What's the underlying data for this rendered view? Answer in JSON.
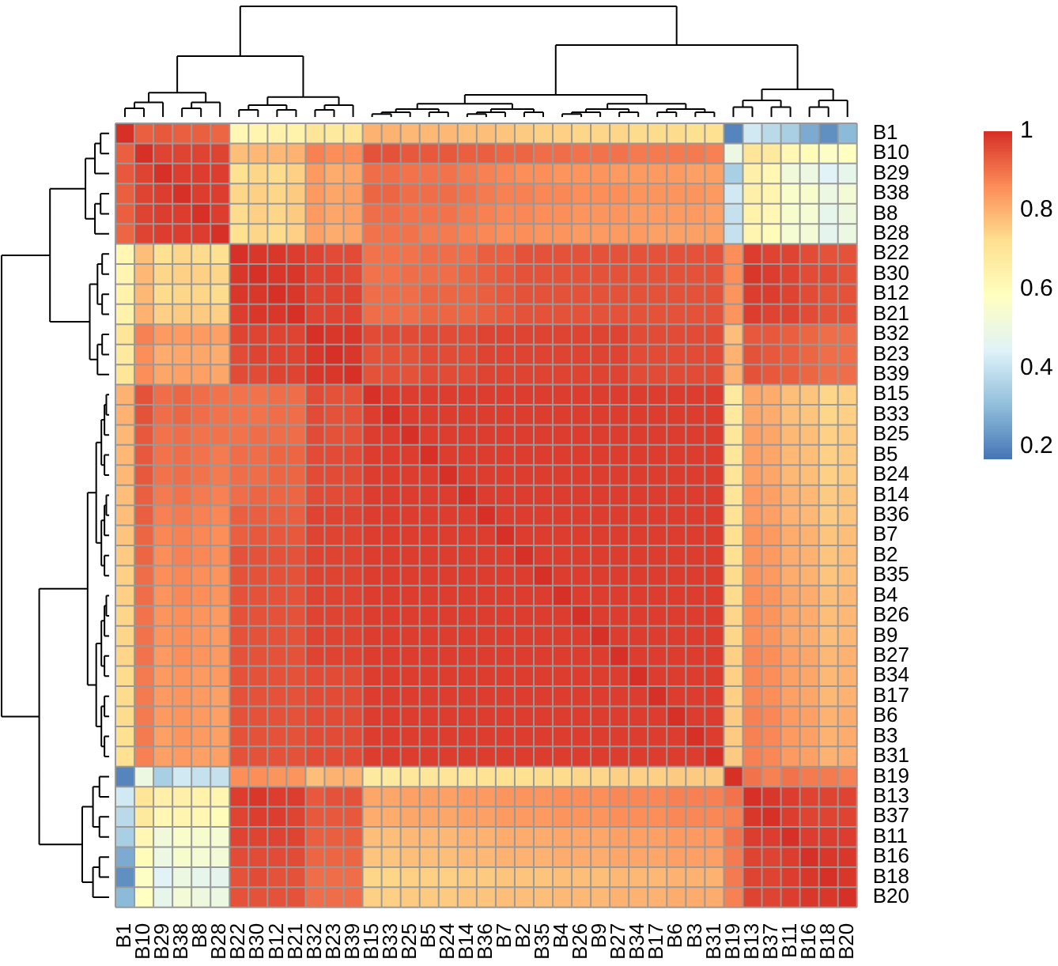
{
  "chart_data": {
    "type": "heatmap",
    "categories": [
      "B1",
      "B10",
      "B29",
      "B38",
      "B8",
      "B28",
      "B22",
      "B30",
      "B12",
      "B21",
      "B32",
      "B23",
      "B39",
      "B15",
      "B33",
      "B25",
      "B5",
      "B24",
      "B14",
      "B36",
      "B7",
      "B2",
      "B35",
      "B4",
      "B26",
      "B9",
      "B27",
      "B34",
      "B17",
      "B6",
      "B3",
      "B31",
      "B19",
      "B13",
      "B37",
      "B11",
      "B16",
      "B18",
      "B20"
    ],
    "y_categories": [
      "B1",
      "B10",
      "B29",
      "B38",
      "B8",
      "B28",
      "B22",
      "B30",
      "B12",
      "B21",
      "B32",
      "B23",
      "B39",
      "B15",
      "B33",
      "B25",
      "B5",
      "B24",
      "B14",
      "B36",
      "B7",
      "B2",
      "B35",
      "B4",
      "B26",
      "B9",
      "B27",
      "B34",
      "B17",
      "B6",
      "B3",
      "B31",
      "B19",
      "B13",
      "B37",
      "B11",
      "B16",
      "B18",
      "B20"
    ],
    "clim": [
      0.17,
      1
    ],
    "cticks": [
      0.2,
      0.4,
      0.6,
      0.8,
      1
    ],
    "cells": [
      [
        1,
        0.93,
        0.94,
        0.93,
        0.93,
        0.92,
        0.62,
        0.63,
        0.64,
        0.64,
        0.7,
        0.68,
        0.7,
        0.8,
        0.8,
        0.79,
        0.79,
        0.79,
        0.78,
        0.78,
        0.77,
        0.76,
        0.75,
        0.75,
        0.74,
        0.74,
        0.74,
        0.73,
        0.73,
        0.73,
        0.72,
        0.72,
        0.2,
        0.42,
        0.38,
        0.35,
        0.27,
        0.22,
        0.3
      ],
      [
        0.93,
        1,
        0.97,
        0.97,
        0.97,
        0.97,
        0.78,
        0.79,
        0.79,
        0.8,
        0.88,
        0.86,
        0.86,
        0.95,
        0.95,
        0.94,
        0.94,
        0.94,
        0.93,
        0.93,
        0.92,
        0.92,
        0.91,
        0.91,
        0.9,
        0.9,
        0.9,
        0.89,
        0.89,
        0.89,
        0.89,
        0.88,
        0.5,
        0.7,
        0.68,
        0.62,
        0.6,
        0.57,
        0.58
      ],
      [
        0.94,
        0.97,
        1,
        0.98,
        0.98,
        0.98,
        0.72,
        0.74,
        0.73,
        0.75,
        0.84,
        0.81,
        0.82,
        0.91,
        0.91,
        0.9,
        0.9,
        0.9,
        0.89,
        0.88,
        0.87,
        0.86,
        0.86,
        0.85,
        0.85,
        0.85,
        0.84,
        0.84,
        0.84,
        0.84,
        0.83,
        0.83,
        0.35,
        0.65,
        0.62,
        0.52,
        0.5,
        0.45,
        0.48
      ],
      [
        0.93,
        0.97,
        0.98,
        1,
        0.98,
        0.98,
        0.74,
        0.75,
        0.74,
        0.76,
        0.84,
        0.82,
        0.83,
        0.92,
        0.92,
        0.91,
        0.91,
        0.91,
        0.9,
        0.89,
        0.88,
        0.88,
        0.87,
        0.87,
        0.86,
        0.86,
        0.86,
        0.85,
        0.85,
        0.85,
        0.85,
        0.84,
        0.42,
        0.65,
        0.63,
        0.56,
        0.55,
        0.5,
        0.53
      ],
      [
        0.93,
        0.97,
        0.98,
        0.98,
        1,
        0.98,
        0.73,
        0.75,
        0.74,
        0.76,
        0.84,
        0.82,
        0.83,
        0.91,
        0.91,
        0.9,
        0.9,
        0.9,
        0.89,
        0.88,
        0.87,
        0.87,
        0.86,
        0.86,
        0.85,
        0.85,
        0.85,
        0.84,
        0.84,
        0.84,
        0.84,
        0.83,
        0.4,
        0.64,
        0.62,
        0.55,
        0.54,
        0.48,
        0.51
      ],
      [
        0.92,
        0.97,
        0.98,
        0.98,
        0.98,
        1,
        0.72,
        0.74,
        0.73,
        0.75,
        0.83,
        0.81,
        0.82,
        0.9,
        0.9,
        0.9,
        0.89,
        0.89,
        0.88,
        0.87,
        0.86,
        0.86,
        0.85,
        0.85,
        0.84,
        0.84,
        0.84,
        0.84,
        0.83,
        0.83,
        0.83,
        0.83,
        0.4,
        0.63,
        0.6,
        0.54,
        0.53,
        0.47,
        0.5
      ],
      [
        0.62,
        0.78,
        0.72,
        0.74,
        0.73,
        0.72,
        1,
        0.99,
        0.99,
        0.98,
        0.97,
        0.96,
        0.96,
        0.9,
        0.9,
        0.9,
        0.91,
        0.91,
        0.91,
        0.93,
        0.93,
        0.95,
        0.95,
        0.95,
        0.95,
        0.95,
        0.95,
        0.95,
        0.95,
        0.95,
        0.95,
        0.95,
        0.86,
        0.98,
        0.97,
        0.97,
        0.96,
        0.95,
        0.95
      ],
      [
        0.63,
        0.79,
        0.74,
        0.75,
        0.75,
        0.74,
        0.99,
        1,
        0.99,
        0.99,
        0.97,
        0.97,
        0.96,
        0.9,
        0.9,
        0.91,
        0.91,
        0.91,
        0.92,
        0.93,
        0.94,
        0.95,
        0.95,
        0.95,
        0.95,
        0.95,
        0.95,
        0.95,
        0.95,
        0.95,
        0.95,
        0.95,
        0.86,
        0.99,
        0.98,
        0.97,
        0.96,
        0.96,
        0.95
      ],
      [
        0.64,
        0.79,
        0.73,
        0.74,
        0.74,
        0.73,
        0.99,
        0.99,
        1,
        0.99,
        0.97,
        0.97,
        0.97,
        0.91,
        0.91,
        0.91,
        0.92,
        0.92,
        0.92,
        0.93,
        0.94,
        0.95,
        0.95,
        0.95,
        0.95,
        0.95,
        0.95,
        0.95,
        0.95,
        0.95,
        0.95,
        0.95,
        0.85,
        0.98,
        0.98,
        0.97,
        0.96,
        0.95,
        0.95
      ],
      [
        0.64,
        0.8,
        0.75,
        0.76,
        0.76,
        0.75,
        0.98,
        0.99,
        0.99,
        1,
        0.97,
        0.97,
        0.97,
        0.91,
        0.91,
        0.91,
        0.92,
        0.92,
        0.92,
        0.93,
        0.94,
        0.95,
        0.95,
        0.95,
        0.95,
        0.95,
        0.95,
        0.95,
        0.95,
        0.95,
        0.95,
        0.95,
        0.85,
        0.98,
        0.97,
        0.97,
        0.96,
        0.95,
        0.95
      ],
      [
        0.7,
        0.88,
        0.84,
        0.84,
        0.84,
        0.83,
        0.97,
        0.97,
        0.97,
        0.97,
        1,
        0.99,
        0.99,
        0.96,
        0.96,
        0.96,
        0.96,
        0.96,
        0.96,
        0.97,
        0.97,
        0.97,
        0.97,
        0.97,
        0.97,
        0.97,
        0.97,
        0.96,
        0.96,
        0.96,
        0.96,
        0.96,
        0.78,
        0.94,
        0.94,
        0.93,
        0.92,
        0.91,
        0.91
      ],
      [
        0.68,
        0.86,
        0.81,
        0.82,
        0.82,
        0.81,
        0.96,
        0.97,
        0.97,
        0.97,
        0.99,
        1,
        0.99,
        0.95,
        0.95,
        0.95,
        0.96,
        0.96,
        0.96,
        0.97,
        0.97,
        0.97,
        0.97,
        0.97,
        0.97,
        0.97,
        0.97,
        0.96,
        0.96,
        0.96,
        0.96,
        0.96,
        0.8,
        0.95,
        0.94,
        0.93,
        0.92,
        0.91,
        0.91
      ],
      [
        0.7,
        0.86,
        0.82,
        0.83,
        0.83,
        0.82,
        0.96,
        0.96,
        0.97,
        0.97,
        0.99,
        0.99,
        1,
        0.95,
        0.95,
        0.95,
        0.96,
        0.96,
        0.96,
        0.97,
        0.97,
        0.97,
        0.97,
        0.97,
        0.97,
        0.97,
        0.97,
        0.96,
        0.96,
        0.96,
        0.96,
        0.96,
        0.8,
        0.95,
        0.94,
        0.93,
        0.92,
        0.91,
        0.91
      ],
      [
        0.8,
        0.95,
        0.91,
        0.92,
        0.91,
        0.9,
        0.9,
        0.9,
        0.91,
        0.91,
        0.96,
        0.95,
        0.95,
        1,
        0.98,
        0.98,
        0.98,
        0.98,
        0.98,
        0.98,
        0.98,
        0.98,
        0.98,
        0.98,
        0.98,
        0.98,
        0.98,
        0.98,
        0.98,
        0.98,
        0.98,
        0.98,
        0.68,
        0.82,
        0.81,
        0.78,
        0.77,
        0.74,
        0.75
      ],
      [
        0.8,
        0.95,
        0.91,
        0.92,
        0.91,
        0.9,
        0.9,
        0.9,
        0.91,
        0.91,
        0.96,
        0.95,
        0.95,
        0.98,
        1,
        0.98,
        0.98,
        0.98,
        0.98,
        0.98,
        0.98,
        0.98,
        0.98,
        0.98,
        0.98,
        0.98,
        0.98,
        0.98,
        0.98,
        0.98,
        0.98,
        0.98,
        0.68,
        0.82,
        0.81,
        0.78,
        0.77,
        0.74,
        0.75
      ],
      [
        0.79,
        0.94,
        0.9,
        0.91,
        0.9,
        0.9,
        0.9,
        0.91,
        0.91,
        0.91,
        0.96,
        0.95,
        0.95,
        0.98,
        0.98,
        1,
        0.98,
        0.98,
        0.98,
        0.98,
        0.98,
        0.98,
        0.98,
        0.98,
        0.98,
        0.98,
        0.98,
        0.98,
        0.98,
        0.98,
        0.98,
        0.98,
        0.69,
        0.83,
        0.82,
        0.79,
        0.78,
        0.75,
        0.76
      ],
      [
        0.79,
        0.94,
        0.9,
        0.91,
        0.9,
        0.89,
        0.91,
        0.91,
        0.92,
        0.92,
        0.96,
        0.96,
        0.96,
        0.98,
        0.98,
        0.98,
        1,
        0.98,
        0.98,
        0.98,
        0.98,
        0.98,
        0.98,
        0.98,
        0.98,
        0.98,
        0.98,
        0.98,
        0.98,
        0.98,
        0.98,
        0.98,
        0.69,
        0.83,
        0.82,
        0.79,
        0.78,
        0.75,
        0.76
      ],
      [
        0.79,
        0.94,
        0.9,
        0.91,
        0.9,
        0.89,
        0.91,
        0.91,
        0.92,
        0.92,
        0.96,
        0.96,
        0.96,
        0.98,
        0.98,
        0.98,
        0.98,
        1,
        0.98,
        0.98,
        0.98,
        0.98,
        0.98,
        0.98,
        0.98,
        0.98,
        0.98,
        0.98,
        0.98,
        0.98,
        0.98,
        0.98,
        0.7,
        0.83,
        0.82,
        0.79,
        0.78,
        0.75,
        0.76
      ],
      [
        0.78,
        0.93,
        0.89,
        0.9,
        0.89,
        0.88,
        0.91,
        0.92,
        0.92,
        0.92,
        0.96,
        0.96,
        0.96,
        0.98,
        0.98,
        0.98,
        0.98,
        0.98,
        1,
        0.98,
        0.98,
        0.98,
        0.98,
        0.98,
        0.98,
        0.98,
        0.98,
        0.98,
        0.98,
        0.98,
        0.98,
        0.98,
        0.7,
        0.84,
        0.83,
        0.8,
        0.79,
        0.76,
        0.77
      ],
      [
        0.78,
        0.93,
        0.88,
        0.89,
        0.88,
        0.87,
        0.93,
        0.93,
        0.93,
        0.93,
        0.97,
        0.97,
        0.97,
        0.98,
        0.98,
        0.98,
        0.98,
        0.98,
        0.98,
        1,
        0.98,
        0.98,
        0.98,
        0.98,
        0.98,
        0.98,
        0.98,
        0.98,
        0.98,
        0.98,
        0.98,
        0.98,
        0.71,
        0.84,
        0.83,
        0.8,
        0.79,
        0.76,
        0.77
      ],
      [
        0.77,
        0.92,
        0.87,
        0.88,
        0.87,
        0.86,
        0.93,
        0.94,
        0.94,
        0.94,
        0.97,
        0.97,
        0.97,
        0.98,
        0.98,
        0.98,
        0.98,
        0.98,
        0.98,
        0.98,
        1,
        0.98,
        0.98,
        0.98,
        0.98,
        0.98,
        0.98,
        0.98,
        0.98,
        0.98,
        0.98,
        0.98,
        0.72,
        0.85,
        0.84,
        0.81,
        0.8,
        0.77,
        0.78
      ],
      [
        0.76,
        0.92,
        0.86,
        0.88,
        0.87,
        0.86,
        0.95,
        0.95,
        0.95,
        0.95,
        0.97,
        0.97,
        0.97,
        0.98,
        0.98,
        0.98,
        0.98,
        0.98,
        0.98,
        0.98,
        0.98,
        1,
        0.98,
        0.98,
        0.98,
        0.98,
        0.98,
        0.98,
        0.98,
        0.98,
        0.98,
        0.98,
        0.72,
        0.85,
        0.84,
        0.81,
        0.8,
        0.77,
        0.78
      ],
      [
        0.75,
        0.91,
        0.86,
        0.87,
        0.86,
        0.85,
        0.95,
        0.95,
        0.95,
        0.95,
        0.97,
        0.97,
        0.97,
        0.98,
        0.98,
        0.98,
        0.98,
        0.98,
        0.98,
        0.98,
        0.98,
        0.98,
        1,
        0.98,
        0.98,
        0.98,
        0.98,
        0.98,
        0.98,
        0.98,
        0.98,
        0.98,
        0.73,
        0.85,
        0.84,
        0.81,
        0.8,
        0.77,
        0.78
      ],
      [
        0.75,
        0.91,
        0.85,
        0.87,
        0.86,
        0.85,
        0.95,
        0.95,
        0.95,
        0.95,
        0.97,
        0.97,
        0.97,
        0.98,
        0.98,
        0.98,
        0.98,
        0.98,
        0.98,
        0.98,
        0.98,
        0.98,
        0.98,
        1,
        0.98,
        0.98,
        0.98,
        0.98,
        0.98,
        0.98,
        0.98,
        0.98,
        0.73,
        0.86,
        0.85,
        0.82,
        0.81,
        0.78,
        0.79
      ],
      [
        0.74,
        0.9,
        0.85,
        0.86,
        0.85,
        0.84,
        0.95,
        0.95,
        0.95,
        0.95,
        0.97,
        0.97,
        0.97,
        0.98,
        0.98,
        0.98,
        0.98,
        0.98,
        0.98,
        0.98,
        0.98,
        0.98,
        0.98,
        0.98,
        1,
        0.98,
        0.98,
        0.98,
        0.98,
        0.98,
        0.98,
        0.98,
        0.74,
        0.86,
        0.85,
        0.82,
        0.81,
        0.78,
        0.79
      ],
      [
        0.74,
        0.9,
        0.85,
        0.86,
        0.85,
        0.84,
        0.95,
        0.95,
        0.95,
        0.95,
        0.97,
        0.97,
        0.97,
        0.98,
        0.98,
        0.98,
        0.98,
        0.98,
        0.98,
        0.98,
        0.98,
        0.98,
        0.98,
        0.98,
        0.98,
        1,
        0.98,
        0.98,
        0.98,
        0.98,
        0.98,
        0.98,
        0.74,
        0.86,
        0.85,
        0.82,
        0.81,
        0.78,
        0.79
      ],
      [
        0.74,
        0.9,
        0.84,
        0.86,
        0.85,
        0.84,
        0.95,
        0.95,
        0.95,
        0.95,
        0.97,
        0.97,
        0.97,
        0.98,
        0.98,
        0.98,
        0.98,
        0.98,
        0.98,
        0.98,
        0.98,
        0.98,
        0.98,
        0.98,
        0.98,
        0.98,
        1,
        0.98,
        0.98,
        0.98,
        0.98,
        0.98,
        0.75,
        0.87,
        0.86,
        0.83,
        0.82,
        0.79,
        0.8
      ],
      [
        0.73,
        0.89,
        0.84,
        0.85,
        0.84,
        0.84,
        0.95,
        0.95,
        0.95,
        0.95,
        0.96,
        0.96,
        0.96,
        0.98,
        0.98,
        0.98,
        0.98,
        0.98,
        0.98,
        0.98,
        0.98,
        0.98,
        0.98,
        0.98,
        0.98,
        0.98,
        0.98,
        1,
        0.98,
        0.98,
        0.98,
        0.98,
        0.75,
        0.87,
        0.86,
        0.83,
        0.82,
        0.79,
        0.8
      ],
      [
        0.73,
        0.89,
        0.84,
        0.85,
        0.84,
        0.83,
        0.95,
        0.95,
        0.95,
        0.95,
        0.96,
        0.96,
        0.96,
        0.98,
        0.98,
        0.98,
        0.98,
        0.98,
        0.98,
        0.98,
        0.98,
        0.98,
        0.98,
        0.98,
        0.98,
        0.98,
        0.98,
        0.98,
        1,
        0.98,
        0.98,
        0.98,
        0.75,
        0.87,
        0.86,
        0.83,
        0.82,
        0.79,
        0.8
      ],
      [
        0.73,
        0.89,
        0.84,
        0.85,
        0.84,
        0.83,
        0.95,
        0.95,
        0.95,
        0.95,
        0.96,
        0.96,
        0.96,
        0.98,
        0.98,
        0.98,
        0.98,
        0.98,
        0.98,
        0.98,
        0.98,
        0.98,
        0.98,
        0.98,
        0.98,
        0.98,
        0.98,
        0.98,
        0.98,
        1,
        0.98,
        0.98,
        0.76,
        0.88,
        0.87,
        0.84,
        0.83,
        0.8,
        0.81
      ],
      [
        0.72,
        0.89,
        0.83,
        0.85,
        0.84,
        0.83,
        0.95,
        0.95,
        0.95,
        0.95,
        0.96,
        0.96,
        0.96,
        0.98,
        0.98,
        0.98,
        0.98,
        0.98,
        0.98,
        0.98,
        0.98,
        0.98,
        0.98,
        0.98,
        0.98,
        0.98,
        0.98,
        0.98,
        0.98,
        0.98,
        1,
        0.98,
        0.76,
        0.88,
        0.87,
        0.84,
        0.83,
        0.8,
        0.81
      ],
      [
        0.72,
        0.88,
        0.83,
        0.84,
        0.83,
        0.83,
        0.95,
        0.95,
        0.95,
        0.95,
        0.96,
        0.96,
        0.96,
        0.98,
        0.98,
        0.98,
        0.98,
        0.98,
        0.98,
        0.98,
        0.98,
        0.98,
        0.98,
        0.98,
        0.98,
        0.98,
        0.98,
        0.98,
        0.98,
        0.98,
        0.98,
        1,
        0.76,
        0.88,
        0.87,
        0.84,
        0.83,
        0.8,
        0.81
      ],
      [
        0.2,
        0.5,
        0.35,
        0.42,
        0.4,
        0.4,
        0.86,
        0.86,
        0.85,
        0.85,
        0.78,
        0.8,
        0.8,
        0.68,
        0.68,
        0.69,
        0.69,
        0.7,
        0.7,
        0.71,
        0.72,
        0.72,
        0.73,
        0.73,
        0.74,
        0.74,
        0.75,
        0.75,
        0.75,
        0.76,
        0.76,
        0.76,
        1,
        0.9,
        0.88,
        0.9,
        0.89,
        0.89,
        0.88
      ],
      [
        0.42,
        0.7,
        0.65,
        0.65,
        0.64,
        0.63,
        0.98,
        0.99,
        0.98,
        0.98,
        0.94,
        0.95,
        0.95,
        0.82,
        0.82,
        0.83,
        0.83,
        0.83,
        0.84,
        0.84,
        0.85,
        0.85,
        0.85,
        0.86,
        0.86,
        0.86,
        0.87,
        0.87,
        0.87,
        0.88,
        0.88,
        0.88,
        0.9,
        1,
        0.99,
        0.98,
        0.97,
        0.97,
        0.97
      ],
      [
        0.38,
        0.68,
        0.62,
        0.63,
        0.62,
        0.6,
        0.97,
        0.98,
        0.98,
        0.97,
        0.94,
        0.94,
        0.94,
        0.81,
        0.81,
        0.82,
        0.82,
        0.82,
        0.83,
        0.83,
        0.84,
        0.84,
        0.84,
        0.85,
        0.85,
        0.85,
        0.86,
        0.86,
        0.86,
        0.87,
        0.87,
        0.87,
        0.88,
        0.99,
        1,
        0.98,
        0.97,
        0.97,
        0.97
      ],
      [
        0.35,
        0.62,
        0.52,
        0.56,
        0.55,
        0.54,
        0.97,
        0.97,
        0.97,
        0.97,
        0.93,
        0.93,
        0.93,
        0.78,
        0.78,
        0.79,
        0.79,
        0.79,
        0.8,
        0.8,
        0.81,
        0.81,
        0.81,
        0.82,
        0.82,
        0.82,
        0.83,
        0.83,
        0.83,
        0.84,
        0.84,
        0.84,
        0.9,
        0.98,
        0.98,
        1,
        0.98,
        0.98,
        0.98
      ],
      [
        0.27,
        0.6,
        0.5,
        0.55,
        0.54,
        0.53,
        0.96,
        0.96,
        0.96,
        0.96,
        0.92,
        0.92,
        0.92,
        0.77,
        0.77,
        0.78,
        0.78,
        0.78,
        0.79,
        0.79,
        0.8,
        0.8,
        0.8,
        0.81,
        0.81,
        0.81,
        0.82,
        0.82,
        0.82,
        0.83,
        0.83,
        0.83,
        0.89,
        0.97,
        0.97,
        0.98,
        1,
        0.99,
        0.99
      ],
      [
        0.22,
        0.57,
        0.45,
        0.5,
        0.48,
        0.47,
        0.95,
        0.96,
        0.95,
        0.95,
        0.91,
        0.91,
        0.91,
        0.74,
        0.74,
        0.75,
        0.75,
        0.75,
        0.76,
        0.76,
        0.77,
        0.77,
        0.77,
        0.78,
        0.78,
        0.78,
        0.79,
        0.79,
        0.79,
        0.8,
        0.8,
        0.8,
        0.89,
        0.97,
        0.97,
        0.98,
        0.99,
        1,
        0.99
      ],
      [
        0.3,
        0.58,
        0.48,
        0.53,
        0.51,
        0.5,
        0.95,
        0.95,
        0.95,
        0.95,
        0.91,
        0.91,
        0.91,
        0.75,
        0.75,
        0.76,
        0.76,
        0.76,
        0.77,
        0.77,
        0.78,
        0.78,
        0.78,
        0.79,
        0.79,
        0.79,
        0.8,
        0.8,
        0.8,
        0.81,
        0.81,
        0.81,
        0.88,
        0.97,
        0.97,
        0.98,
        0.99,
        0.99,
        1
      ]
    ]
  }
}
